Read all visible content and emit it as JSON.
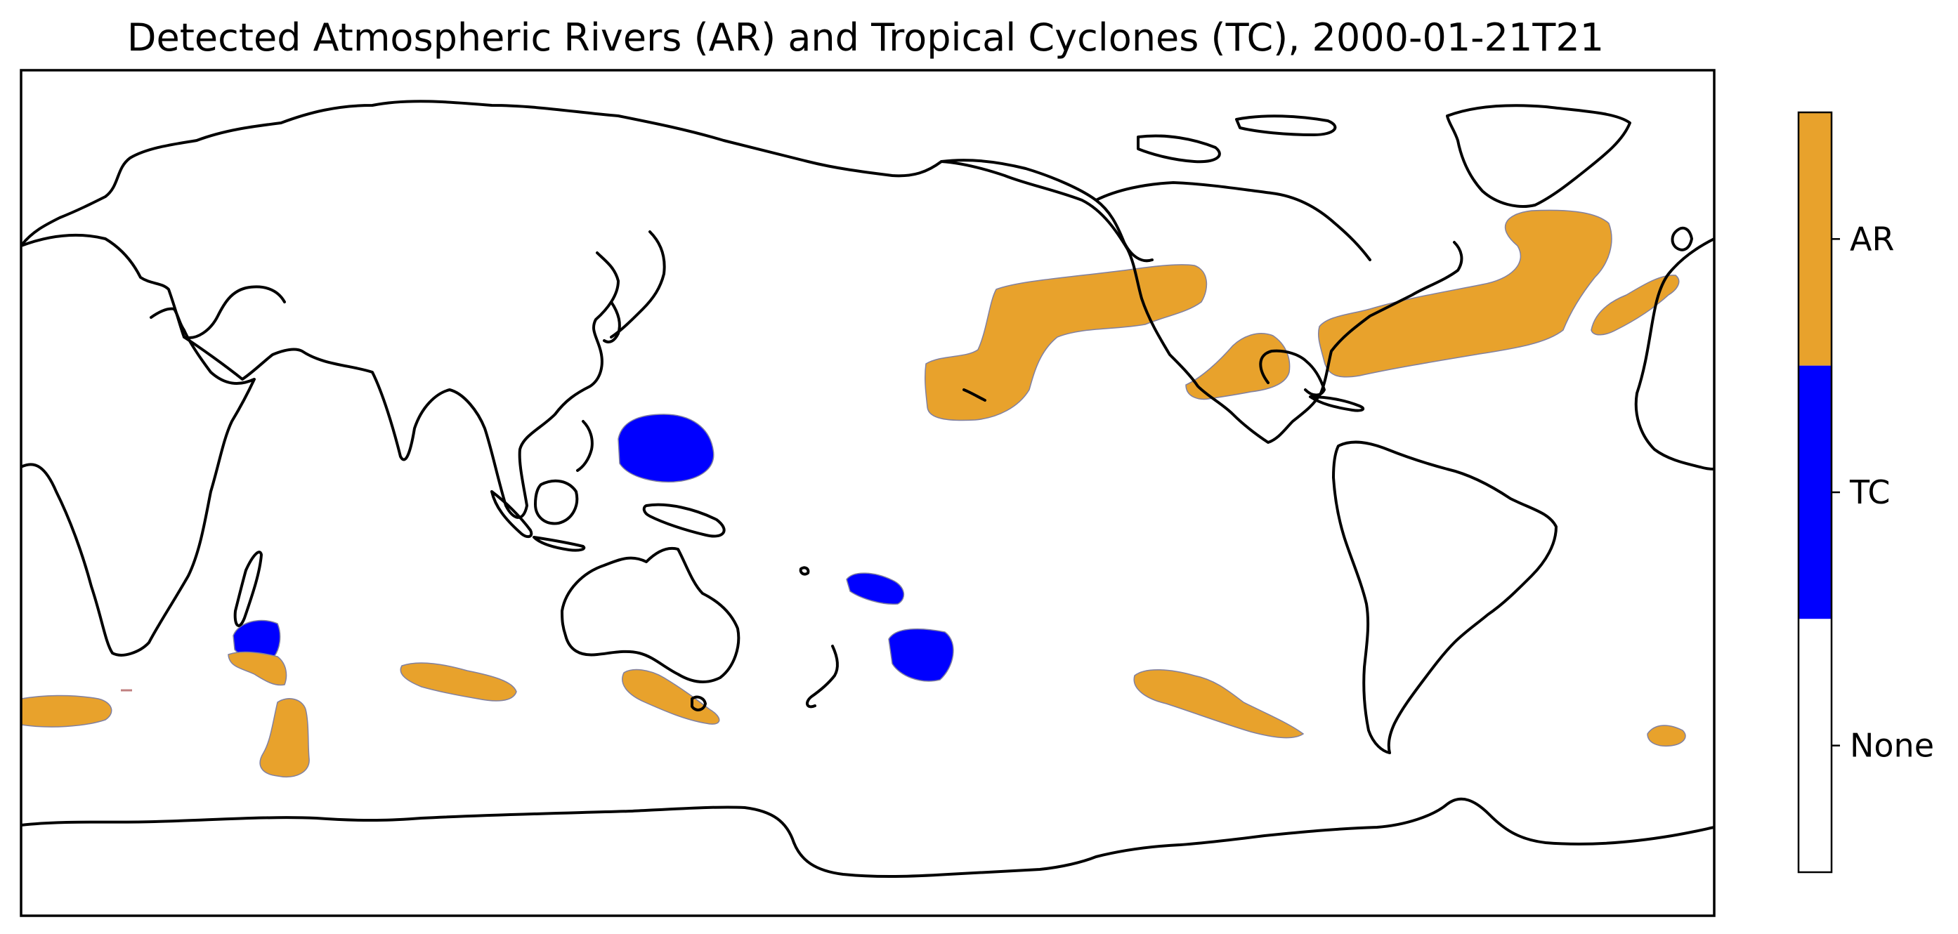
{
  "title": "Detected Atmospheric Rivers (AR) and Tropical Cyclones (TC), 2000-01-21T21",
  "colorbar": {
    "categories": [
      {
        "label": "AR",
        "color": "#e8a22c"
      },
      {
        "label": "TC",
        "color": "#0000ff"
      },
      {
        "label": "None",
        "color": "#ffffff"
      }
    ]
  },
  "colors": {
    "AR": "#e8a22c",
    "TC": "#0000ff",
    "coastline": "#000000",
    "region_edge": "#8080a0"
  },
  "map": {
    "projection": "PlateCarree",
    "central_longitude": 180,
    "extent_lon": [
      0,
      360
    ],
    "extent_lat": [
      -90,
      90
    ]
  },
  "detections": [
    {
      "type": "TC",
      "name": "tc-west-pacific"
    },
    {
      "type": "TC",
      "name": "tc-south-pacific-north"
    },
    {
      "type": "TC",
      "name": "tc-south-pacific-south"
    },
    {
      "type": "TC",
      "name": "tc-south-indian"
    },
    {
      "type": "AR",
      "name": "ar-north-pacific"
    },
    {
      "type": "AR",
      "name": "ar-gulf-mexico"
    },
    {
      "type": "AR",
      "name": "ar-north-atlantic"
    },
    {
      "type": "AR",
      "name": "ar-east-atlantic"
    },
    {
      "type": "AR",
      "name": "ar-south-indian-west"
    },
    {
      "type": "AR",
      "name": "ar-south-indian-madagascar"
    },
    {
      "type": "AR",
      "name": "ar-south-indian-south"
    },
    {
      "type": "AR",
      "name": "ar-south-indian-central"
    },
    {
      "type": "AR",
      "name": "ar-south-australia"
    },
    {
      "type": "AR",
      "name": "ar-south-pacific"
    },
    {
      "type": "AR",
      "name": "ar-south-atlantic"
    }
  ]
}
